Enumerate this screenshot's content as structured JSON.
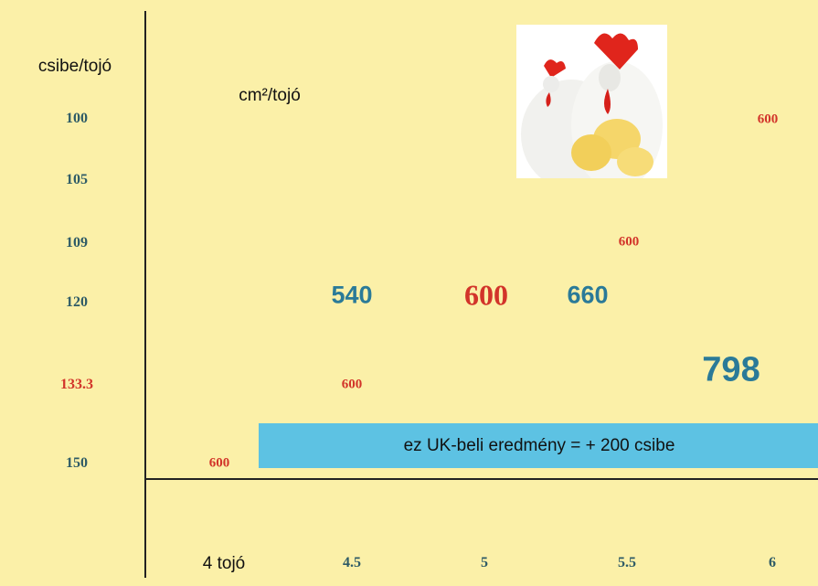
{
  "row_header": "csibe/tojó",
  "value_header": "cm²/tojó",
  "rows": [
    "100",
    "105",
    "109",
    "120",
    "133.3",
    "150"
  ],
  "columns": [
    "4 tojó",
    "4.5",
    "5",
    "5.5",
    "6"
  ],
  "cells": [
    "600",
    "600",
    "540",
    "600",
    "660",
    "798",
    "600",
    "600"
  ],
  "banner": "ez UK-beli eredmény = + 200 csibe"
}
